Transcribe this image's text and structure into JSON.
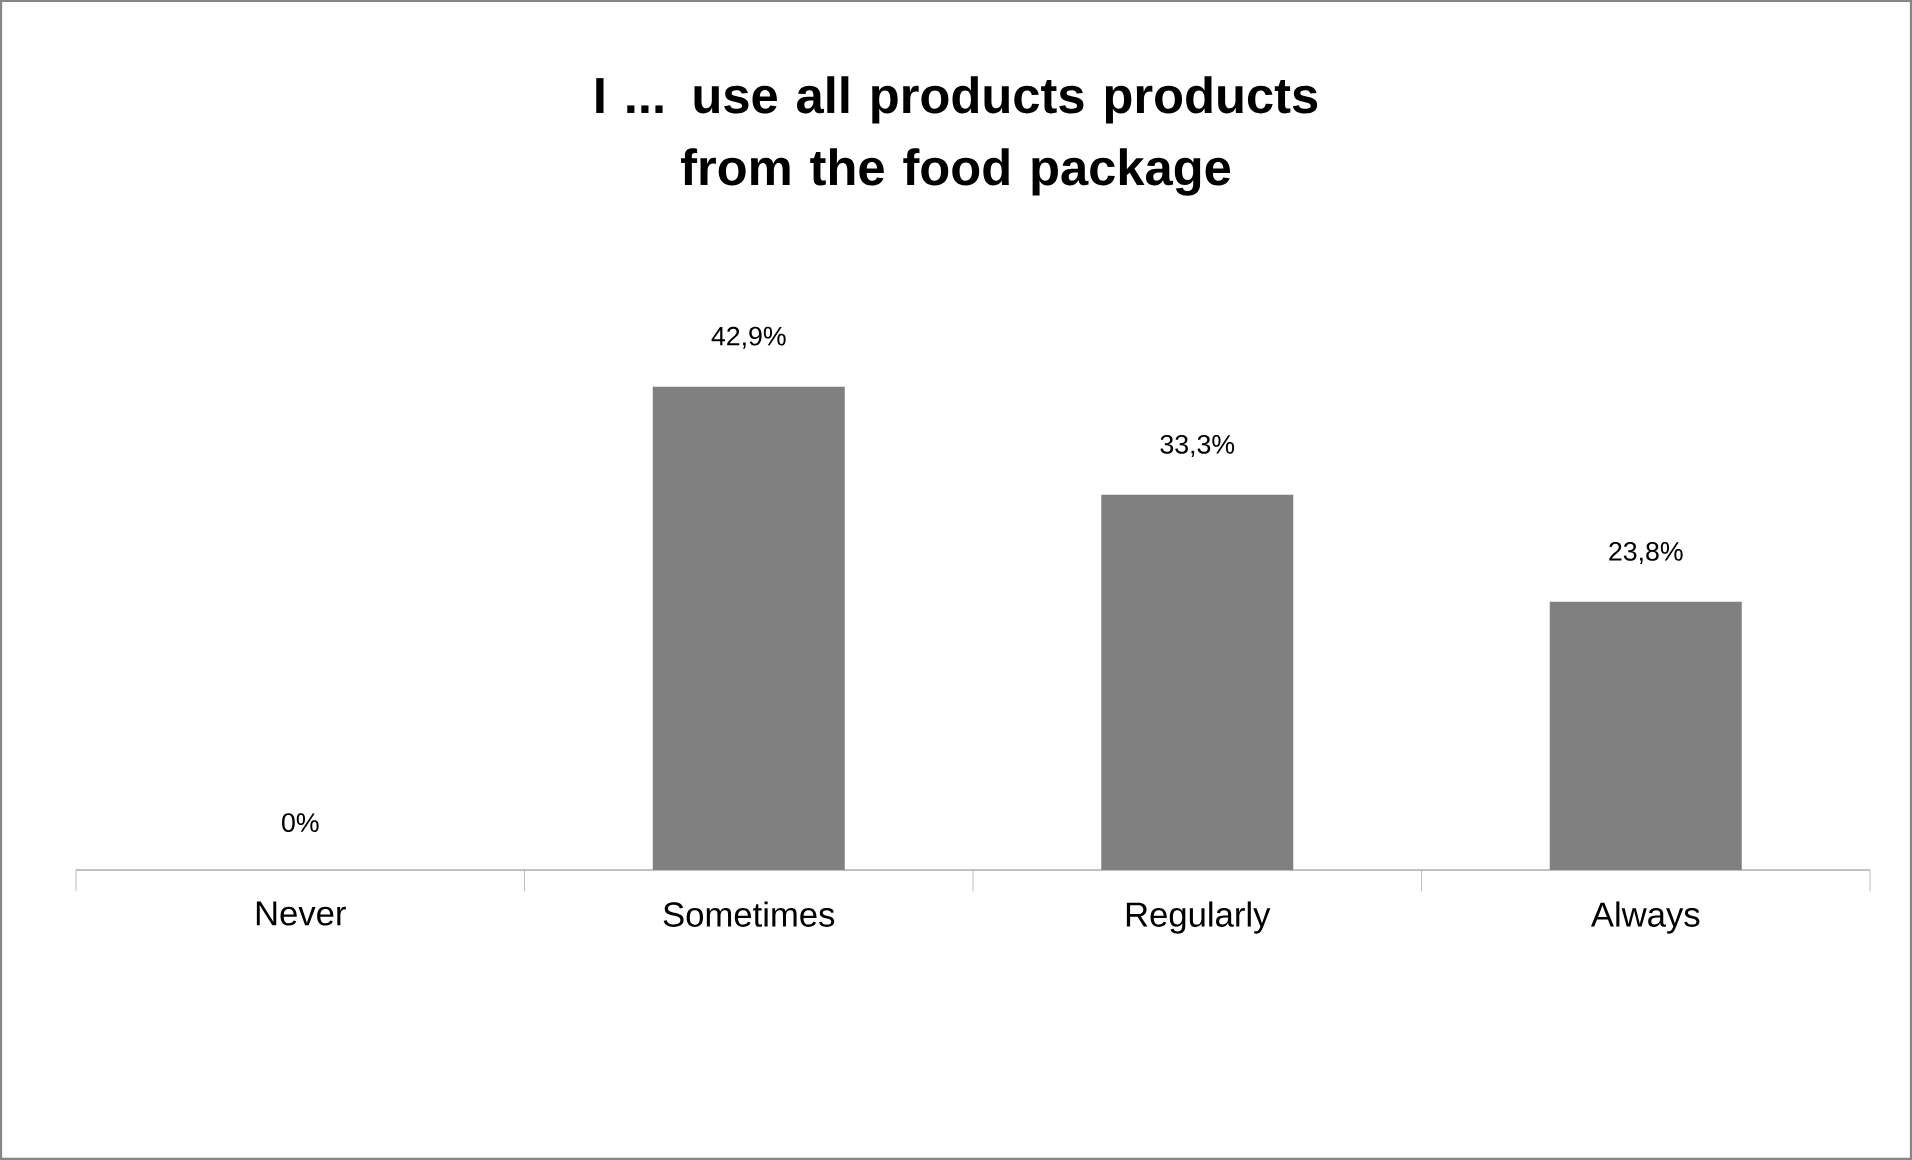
{
  "chart_data": {
    "type": "bar",
    "title": "I ... use all products products from the food package",
    "categories": [
      "Never",
      "Sometimes",
      "Regularly",
      "Always"
    ],
    "values": [
      0,
      42.9,
      33.3,
      23.8
    ],
    "value_labels": [
      "0%",
      "42,9%",
      "33,3%",
      "23,8%"
    ],
    "color": "#808080"
  }
}
